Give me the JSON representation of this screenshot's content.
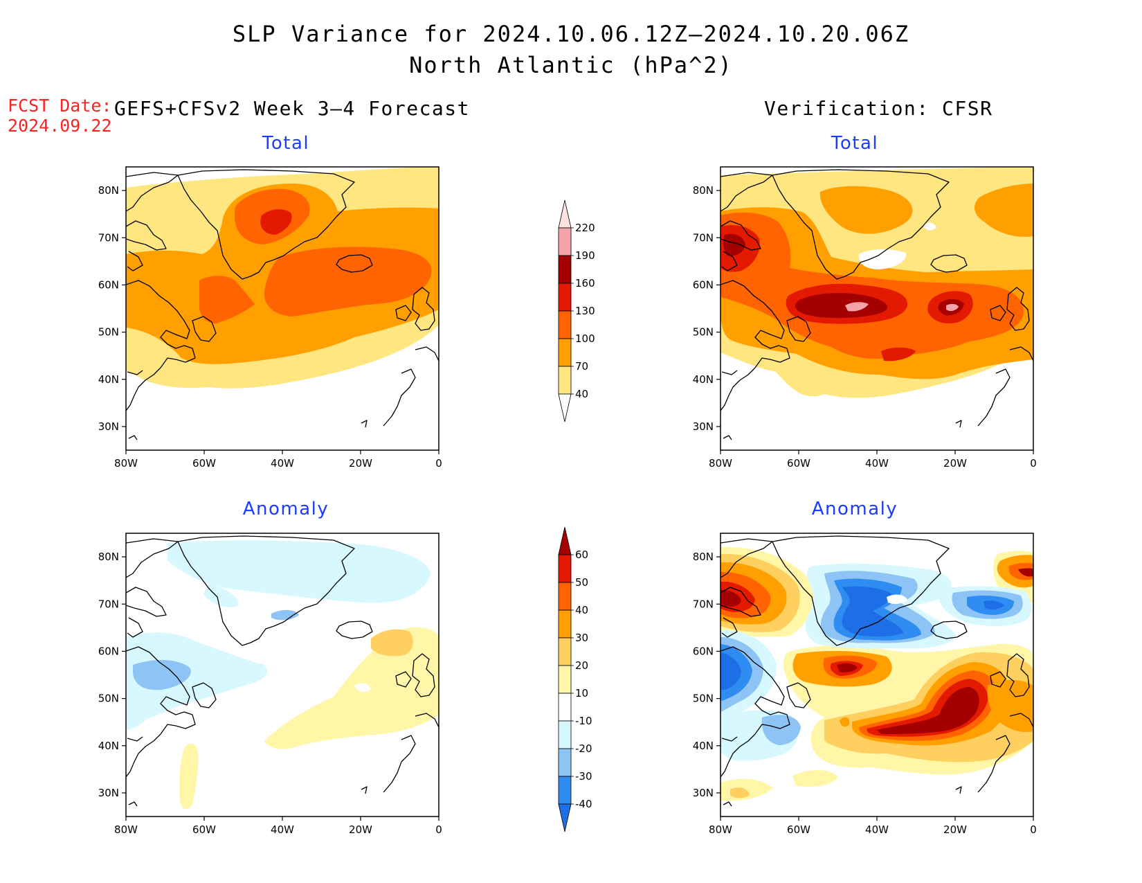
{
  "title": {
    "line1": "SLP Variance for 2024.10.06.12Z–2024.10.20.06Z",
    "line2": "North Atlantic (hPa^2)"
  },
  "forecast_date": {
    "label": "FCST Date:",
    "value": "2024.09.22"
  },
  "columns": {
    "left": "GEFS+CFSv2 Week 3–4 Forecast",
    "right": "Verification: CFSR"
  },
  "panels": {
    "top_left": "Total",
    "top_right": "Total",
    "bottom_left": "Anomaly",
    "bottom_right": "Anomaly"
  },
  "axes": {
    "lat_labels": [
      "30N",
      "40N",
      "50N",
      "60N",
      "70N",
      "80N"
    ],
    "lat_values": [
      30,
      40,
      50,
      60,
      70,
      80
    ],
    "lat_range": [
      25,
      85
    ],
    "lon_labels": [
      "80W",
      "60W",
      "40W",
      "20W",
      "0"
    ],
    "lon_values": [
      -80,
      -60,
      -40,
      -20,
      0
    ],
    "lon_range": [
      -80,
      0
    ]
  },
  "colorbars": {
    "total": {
      "levels": [
        "40",
        "70",
        "100",
        "130",
        "160",
        "190",
        "220"
      ],
      "colors": [
        "#ffffff",
        "#ffe680",
        "#ffa000",
        "#ff6400",
        "#e31a00",
        "#a50000",
        "#f4a3a8",
        "#fde0e0"
      ]
    },
    "anomaly": {
      "levels": [
        "-40",
        "-30",
        "-20",
        "-10",
        "10",
        "20",
        "30",
        "40",
        "50",
        "60"
      ],
      "colors": [
        "#1e6ee8",
        "#2f8cf0",
        "#8ec3f5",
        "#d8f8ff",
        "#ffffff",
        "#fff6a8",
        "#ffd060",
        "#ffa000",
        "#ff6400",
        "#e31a00",
        "#a50000"
      ]
    }
  }
}
